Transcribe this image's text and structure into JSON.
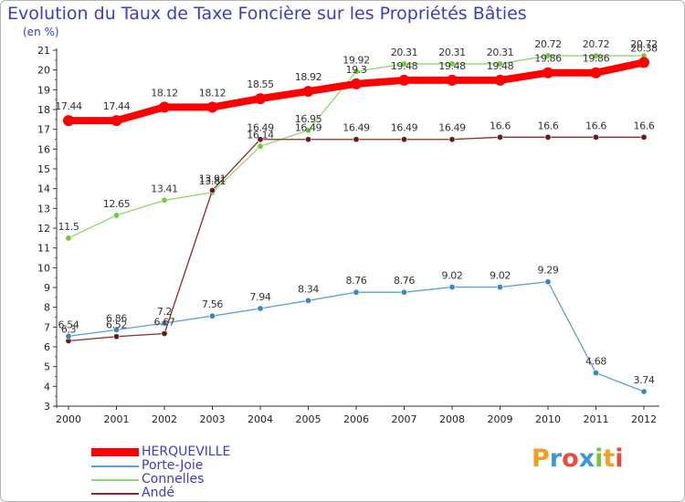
{
  "title": "Evolution du Taux de Taxe Foncière sur les Propriétés Bâties",
  "unit": "(en %)",
  "logo": {
    "letters": [
      "P",
      "r",
      "o",
      "x",
      "i",
      "t",
      "i"
    ],
    "colors": [
      "#f0a020",
      "#3a9ad9",
      "#e84c3d",
      "#3a9ad9",
      "#7cc242",
      "#f0a020",
      "#e84c3d"
    ]
  },
  "legend": [
    {
      "label": "HERQUEVILLE",
      "color": "#ff0000"
    },
    {
      "label": "Porte-Joie",
      "color": "#5fa0d0"
    },
    {
      "label": "Connelles",
      "color": "#8fd870"
    },
    {
      "label": "Andé",
      "color": "#8b2b2b"
    }
  ],
  "chart_data": {
    "type": "line",
    "title": "Evolution du Taux de Taxe Foncière sur les Propriétés Bâties",
    "ylabel": "(en %)",
    "xlabel": "",
    "ylim": [
      3,
      21
    ],
    "yticks": [
      3,
      4,
      5,
      6,
      7,
      8,
      9,
      10,
      11,
      12,
      13,
      14,
      15,
      16,
      17,
      18,
      19,
      20,
      21
    ],
    "categories": [
      "2000",
      "2001",
      "2002",
      "2003",
      "2004",
      "2005",
      "2006",
      "2007",
      "2008",
      "2009",
      "2010",
      "2011",
      "2012"
    ],
    "series": [
      {
        "name": "HERQUEVILLE",
        "color": "#ff0000",
        "marker": "#ff0000",
        "values": [
          17.44,
          17.44,
          18.12,
          18.12,
          18.55,
          18.92,
          19.3,
          19.48,
          19.48,
          19.48,
          19.86,
          19.86,
          20.38
        ],
        "labels": [
          "17.44",
          "17.44",
          "18.12",
          "18.12",
          "18.55",
          "18.92",
          "19.3",
          "19.48",
          "19.48",
          "19.48",
          "19.86",
          "19.86",
          "20.38"
        ]
      },
      {
        "name": "Porte-Joie",
        "color": "#5fa0d0",
        "marker": "#3a86c8",
        "values": [
          6.54,
          6.86,
          7.2,
          7.56,
          7.94,
          8.34,
          8.76,
          8.76,
          9.02,
          9.02,
          9.29,
          4.68,
          3.74
        ],
        "labels": [
          "6.54",
          "6.86",
          "7.2",
          "7.56",
          "7.94",
          "8.34",
          "8.76",
          "8.76",
          "9.02",
          "9.02",
          "9.29",
          "4.68",
          "3.74"
        ]
      },
      {
        "name": "Connelles",
        "color": "#8fd870",
        "marker": "#6fcc3a",
        "values": [
          11.5,
          12.65,
          13.41,
          13.81,
          16.14,
          16.95,
          19.92,
          20.31,
          20.31,
          20.31,
          20.72,
          20.72,
          20.72
        ],
        "labels": [
          "11.5",
          "12.65",
          "13.41",
          "13.81",
          "16.14",
          "16.95",
          "19.92",
          "20.31",
          "20.31",
          "20.31",
          "20.72",
          "20.72",
          "20.72"
        ]
      },
      {
        "name": "Andé",
        "color": "#8b2b2b",
        "marker": "#6b1a1a",
        "values": [
          6.3,
          6.52,
          6.67,
          13.91,
          16.49,
          16.49,
          16.49,
          16.49,
          16.49,
          16.6,
          16.6,
          16.6,
          16.6
        ],
        "labels": [
          "6.3",
          "6.52",
          "6.67",
          "13.91",
          "16.49",
          "16.49",
          "16.49",
          "16.49",
          "16.49",
          "16.6",
          "16.6",
          "16.6",
          "16.6"
        ]
      }
    ]
  }
}
